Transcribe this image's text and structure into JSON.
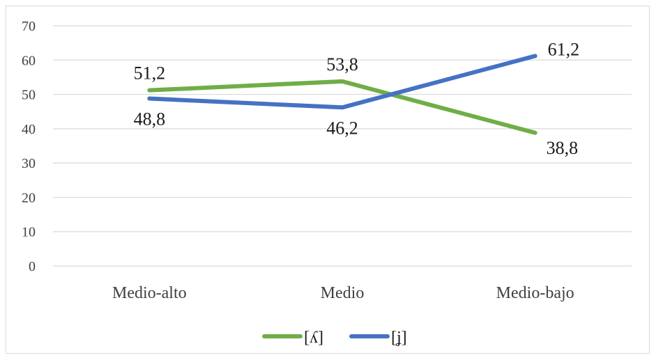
{
  "chart_data": {
    "type": "line",
    "title": "",
    "xlabel": "",
    "ylabel": "",
    "categories": [
      "Medio-alto",
      "Medio",
      "Medio-bajo"
    ],
    "ylim": [
      0,
      70
    ],
    "yticks": [
      0,
      10,
      20,
      30,
      40,
      50,
      60,
      70
    ],
    "grid": true,
    "legend_position": "bottom",
    "series": [
      {
        "name": "[ʎ]",
        "color": "#70ad47",
        "values": [
          51.2,
          53.8,
          38.8
        ],
        "labels": [
          "51,2",
          "53,8",
          "38,8"
        ],
        "label_position": [
          "above",
          "above",
          "below"
        ]
      },
      {
        "name": "[ʝ]",
        "color": "#4472c4",
        "values": [
          48.8,
          46.2,
          61.2
        ],
        "labels": [
          "48,8",
          "46,2",
          "61,2"
        ],
        "label_position": [
          "below",
          "below",
          "above"
        ]
      }
    ]
  }
}
